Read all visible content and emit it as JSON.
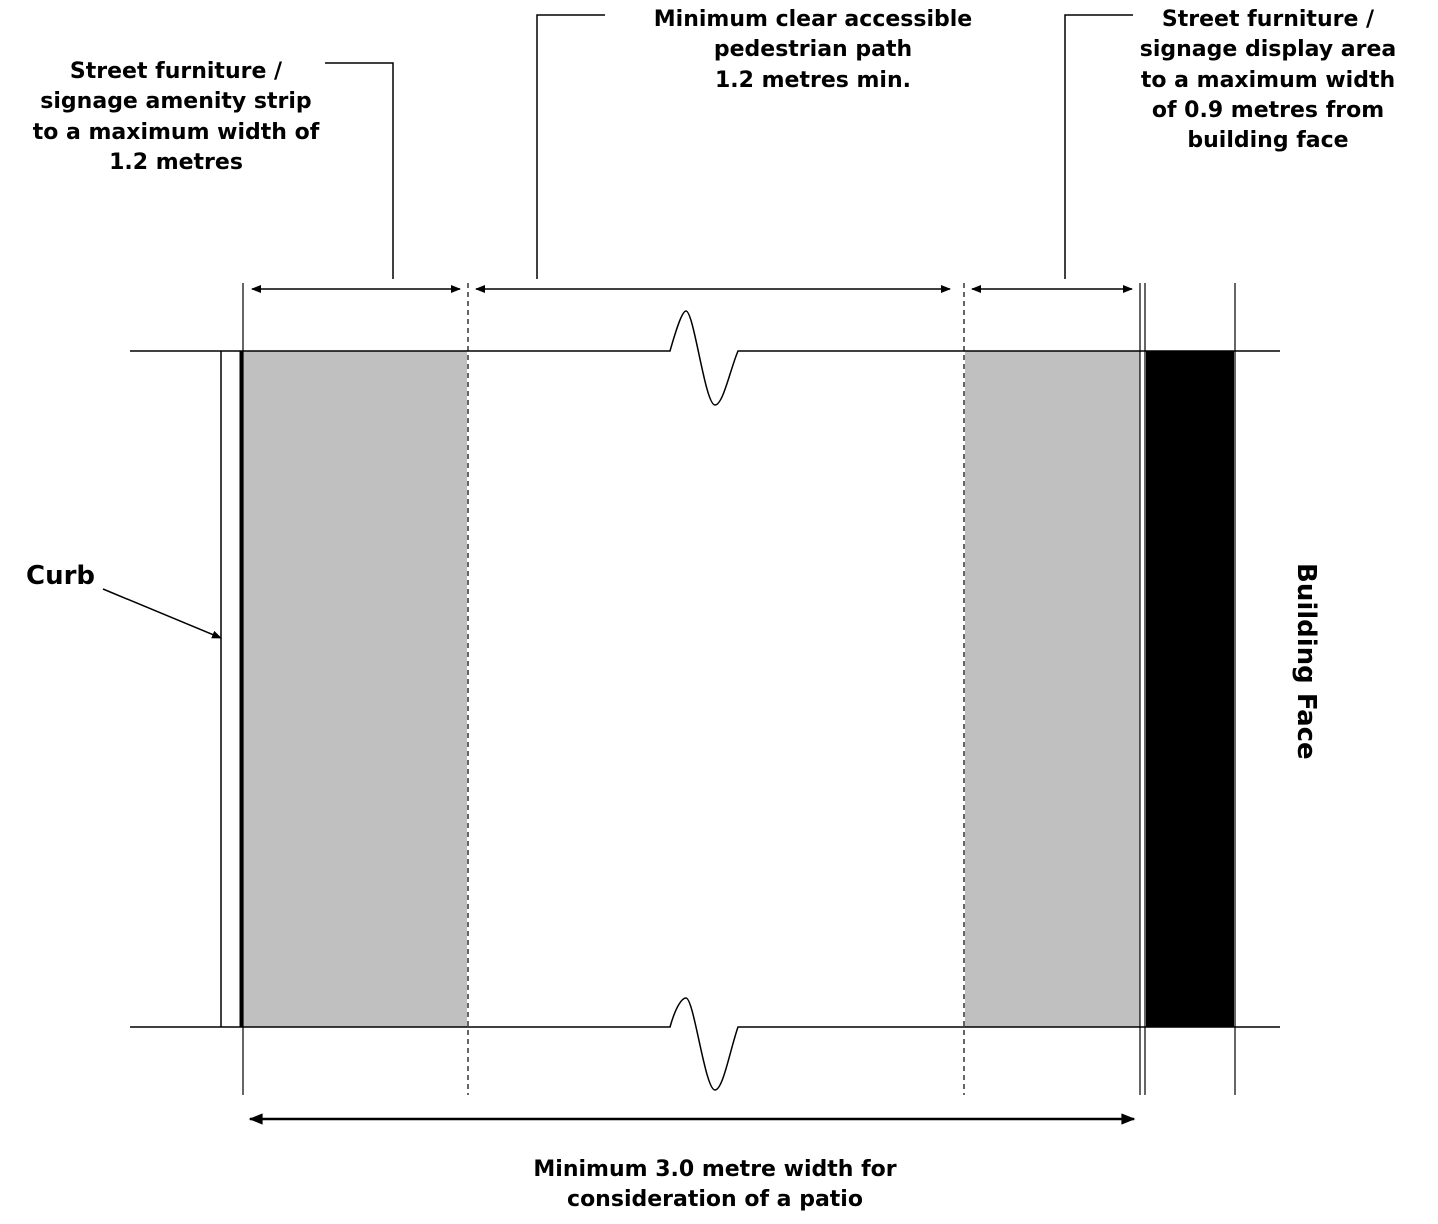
{
  "labels": {
    "amenity_strip": [
      "Street furniture /",
      "signage amenity strip",
      "to a maximum width of",
      "1.2 metres"
    ],
    "pedestrian_path": [
      "Minimum clear accessible",
      "pedestrian path",
      "1.2 metres min."
    ],
    "display_area": [
      "Street furniture /",
      "signage display area",
      "to a maximum width",
      "of 0.9 metres from",
      "building face"
    ],
    "curb": "Curb",
    "building_face": "Building Face",
    "patio_width": [
      "Minimum 3.0 metre width for",
      "consideration of a patio"
    ]
  },
  "colors": {
    "strip_fill": "#c0c0c0",
    "building_fill": "#000000",
    "line": "#000000"
  }
}
